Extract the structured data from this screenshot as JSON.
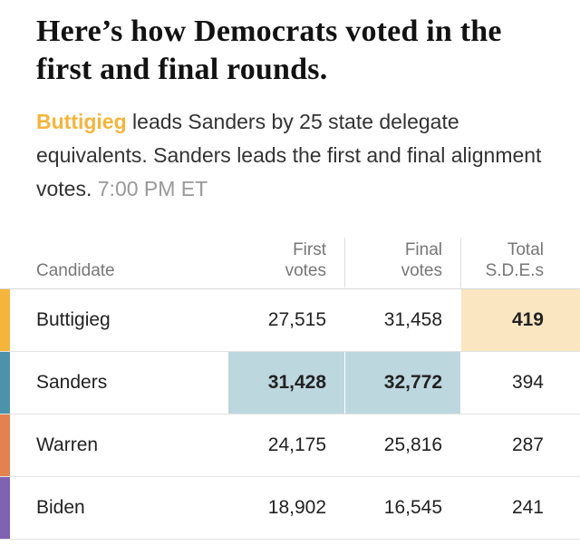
{
  "headline": "Here’s how Democrats voted in the first and final rounds.",
  "summary": {
    "lead_name": "Buttigieg",
    "text": " leads Sanders by 25 state delegate equivalents. Sanders leads the first and final alignment votes. ",
    "timestamp": "7:00 PM ET"
  },
  "table": {
    "headers": {
      "candidate": "Candidate",
      "first_votes_line1": "First",
      "first_votes_line2": "votes",
      "final_votes_line1": "Final",
      "final_votes_line2": "votes",
      "sdes_line1": "Total",
      "sdes_line2": "S.D.E.s"
    },
    "rows": [
      {
        "candidate": "Buttigieg",
        "color": "#f5b43c",
        "first_votes": "27,515",
        "final_votes": "31,458",
        "sdes": "419"
      },
      {
        "candidate": "Sanders",
        "color": "#4b93a8",
        "first_votes": "31,428",
        "final_votes": "32,772",
        "sdes": "394"
      },
      {
        "candidate": "Warren",
        "color": "#e2834f",
        "first_votes": "24,175",
        "final_votes": "25,816",
        "sdes": "287"
      },
      {
        "candidate": "Biden",
        "color": "#8062b3",
        "first_votes": "18,902",
        "final_votes": "16,545",
        "sdes": "241"
      }
    ],
    "highlight_colors": {
      "sanders": "#bdd7df",
      "buttigieg": "#fbe6c2"
    }
  }
}
